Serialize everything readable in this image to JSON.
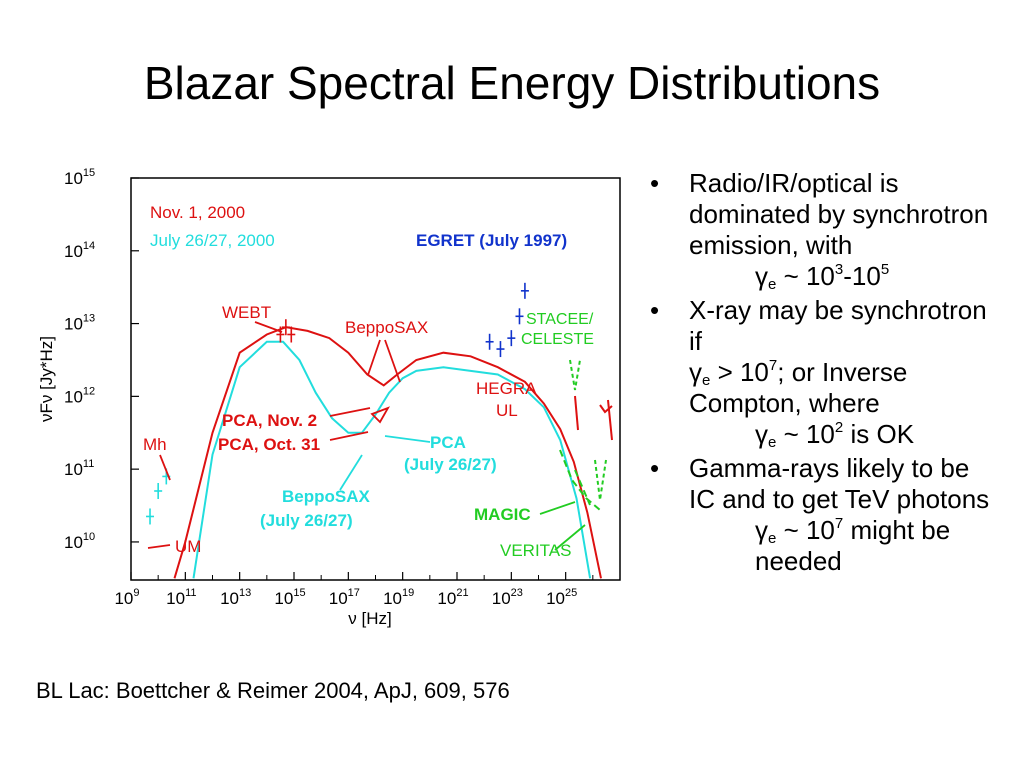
{
  "slide": {
    "title": "Blazar Spectral Energy Distributions",
    "caption": "BL Lac: Boettcher & Reimer 2004, ApJ, 609, 576"
  },
  "colors": {
    "red": "#dd1111",
    "cyan": "#22dddd",
    "blue": "#1133cc",
    "green": "#22cc22"
  },
  "bullets": [
    {
      "lead": "Radio/IR/optical is dominated by synchrotron emission, with",
      "g1": "γ",
      "s1": "e",
      "t1": " ~ 10",
      "p1": "3",
      "t2": "-10",
      "p2": "5"
    },
    {
      "lead": "X-ray may be synchrotron if",
      "g1": "γ",
      "s1": "e",
      "t1": " > 10",
      "p1": "7",
      "t2": "; or Inverse Compton, where",
      "g2": "γ",
      "s2": "e",
      "t3": " ~ 10",
      "p3": "2",
      "t4": " is OK"
    },
    {
      "lead": "Gamma-rays likely to be  IC and to get TeV photons",
      "g1": "γ",
      "s1": "e",
      "t1": " ~ 10",
      "p1": "7",
      "t2": " might be needed"
    }
  ],
  "chart_data": {
    "type": "line",
    "title": "",
    "xlabel": "ν [Hz]",
    "ylabel": "νFν [Jy*Hz]",
    "x_scale": "log",
    "y_scale": "log",
    "xlim": [
      1000000000.0,
      1e+27
    ],
    "ylim": [
      3000000000.0,
      1000000000000000.0
    ],
    "x_ticks": [
      {
        "b": "10",
        "e": "9",
        "v": 9
      },
      {
        "b": "10",
        "e": "11",
        "v": 11
      },
      {
        "b": "10",
        "e": "13",
        "v": 13
      },
      {
        "b": "10",
        "e": "15",
        "v": 15
      },
      {
        "b": "10",
        "e": "17",
        "v": 17
      },
      {
        "b": "10",
        "e": "19",
        "v": 19
      },
      {
        "b": "10",
        "e": "21",
        "v": 21
      },
      {
        "b": "10",
        "e": "23",
        "v": 23
      },
      {
        "b": "10",
        "e": "25",
        "v": 25
      }
    ],
    "y_ticks": [
      {
        "b": "10",
        "e": "10",
        "v": 10
      },
      {
        "b": "10",
        "e": "11",
        "v": 11
      },
      {
        "b": "10",
        "e": "12",
        "v": 12
      },
      {
        "b": "10",
        "e": "13",
        "v": 13
      },
      {
        "b": "10",
        "e": "14",
        "v": 14
      },
      {
        "b": "10",
        "e": "15",
        "v": 15
      }
    ],
    "series": [
      {
        "name": "Nov. 1, 2000",
        "color": "#dd1111",
        "x": [
          10.6,
          11.0,
          12.0,
          13.0,
          14.0,
          14.7,
          15.5,
          16.3,
          17.0,
          17.7,
          18.3,
          18.8,
          19.5,
          20.5,
          21.5,
          22.5,
          23.5,
          24.2,
          24.8,
          25.3,
          25.8,
          26.3
        ],
        "y": [
          9.5,
          10.0,
          11.5,
          12.6,
          12.85,
          12.95,
          12.9,
          12.8,
          12.6,
          12.3,
          12.15,
          12.3,
          12.5,
          12.6,
          12.55,
          12.4,
          12.2,
          11.9,
          11.55,
          11.1,
          10.4,
          9.5
        ]
      },
      {
        "name": "July 26/27, 2000",
        "color": "#22dddd",
        "x": [
          11.3,
          12.0,
          13.0,
          14.0,
          14.6,
          15.2,
          15.8,
          16.4,
          17.0,
          17.5,
          18.0,
          18.5,
          19.0,
          19.5,
          20.5,
          21.5,
          22.5,
          23.5,
          24.2,
          24.8,
          25.4,
          25.9
        ],
        "y": [
          9.5,
          11.2,
          12.4,
          12.75,
          12.75,
          12.5,
          12.05,
          11.7,
          11.5,
          11.5,
          11.75,
          12.05,
          12.25,
          12.35,
          12.4,
          12.35,
          12.3,
          12.1,
          11.85,
          11.4,
          10.6,
          9.5
        ]
      }
    ],
    "data_points": [
      {
        "group": "EGRET (July 1997)",
        "color": "#1133cc",
        "x": [
          22.2,
          22.6,
          23.0,
          23.3,
          23.5
        ],
        "y": [
          12.75,
          12.65,
          12.8,
          13.1,
          13.45
        ]
      },
      {
        "group": "WEBT",
        "color": "#dd1111",
        "x": [
          14.5,
          14.7,
          14.9
        ],
        "y": [
          12.85,
          12.95,
          12.85
        ]
      },
      {
        "group": "Mh",
        "color": "#22dddd",
        "x": [
          9.7,
          10.0,
          10.3
        ],
        "y": [
          10.35,
          10.7,
          10.9
        ]
      }
    ],
    "annotations": [
      {
        "text": "Nov. 1, 2000",
        "color": "#dd1111"
      },
      {
        "text": "July 26/27, 2000",
        "color": "#22dddd"
      },
      {
        "text": "EGRET (July 1997)",
        "color": "#1133cc"
      },
      {
        "text": "WEBT",
        "color": "#dd1111"
      },
      {
        "text": "BeppoSAX",
        "color": "#dd1111"
      },
      {
        "text": "STACEE/",
        "color": "#22cc22"
      },
      {
        "text": "CELESTE",
        "color": "#22cc22"
      },
      {
        "text": "HEGRA",
        "color": "#dd1111"
      },
      {
        "text": "UL",
        "color": "#dd1111"
      },
      {
        "text": "PCA, Nov. 2",
        "color": "#dd1111"
      },
      {
        "text": "PCA, Oct. 31",
        "color": "#dd1111"
      },
      {
        "text": "PCA",
        "color": "#22dddd"
      },
      {
        "text": "(July 26/27)",
        "color": "#22dddd"
      },
      {
        "text": "Mh",
        "color": "#dd1111"
      },
      {
        "text": "UM",
        "color": "#dd1111"
      },
      {
        "text": "BeppoSAX",
        "color": "#22dddd"
      },
      {
        "text": "(July 26/27)",
        "color": "#22dddd"
      },
      {
        "text": "MAGIC",
        "color": "#22cc22"
      },
      {
        "text": "VERITAS",
        "color": "#22cc22"
      }
    ]
  }
}
